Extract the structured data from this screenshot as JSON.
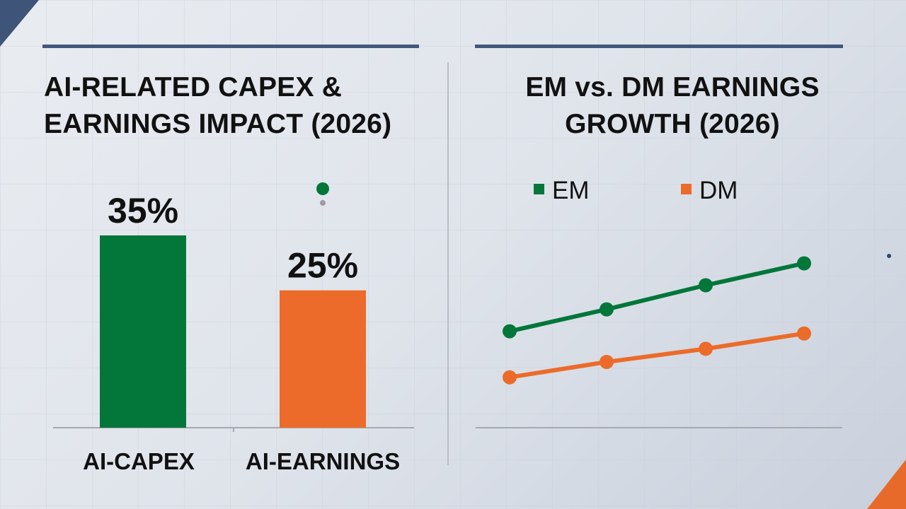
{
  "colors": {
    "green": "#03763a",
    "orange": "#ec6b2a",
    "accent": "#42577c",
    "axis": "#a6a9b0"
  },
  "chart_data": [
    {
      "type": "bar",
      "title": "AI-RELATED CAPEX & EARNINGS IMPACT (2026)",
      "title_lines": [
        "AI-RELATED CAPEX &",
        "EARNINGS IMPACT (2026)"
      ],
      "categories": [
        "AI-CAPEX",
        "AI-EARNINGS"
      ],
      "values": [
        35,
        25
      ],
      "data_labels": [
        "35%",
        "25%"
      ],
      "colors": [
        "#03763a",
        "#ec6b2a"
      ],
      "ylim": [
        0,
        35
      ],
      "grid": false
    },
    {
      "type": "line",
      "title": "EM vs. DM EARNINGS GROWTH (2026)",
      "title_lines": [
        "EM vs. DM EARNINGS",
        "GROWTH (2026)"
      ],
      "x": [
        1,
        2,
        3,
        4
      ],
      "series": [
        {
          "name": "EM",
          "color": "#03763a",
          "values": [
            4.4,
            5.4,
            6.5,
            7.5
          ]
        },
        {
          "name": "DM",
          "color": "#ec6b2a",
          "values": [
            2.3,
            3.0,
            3.6,
            4.3
          ]
        }
      ],
      "ylim": [
        0,
        10
      ],
      "legend": "top",
      "grid": false
    }
  ]
}
